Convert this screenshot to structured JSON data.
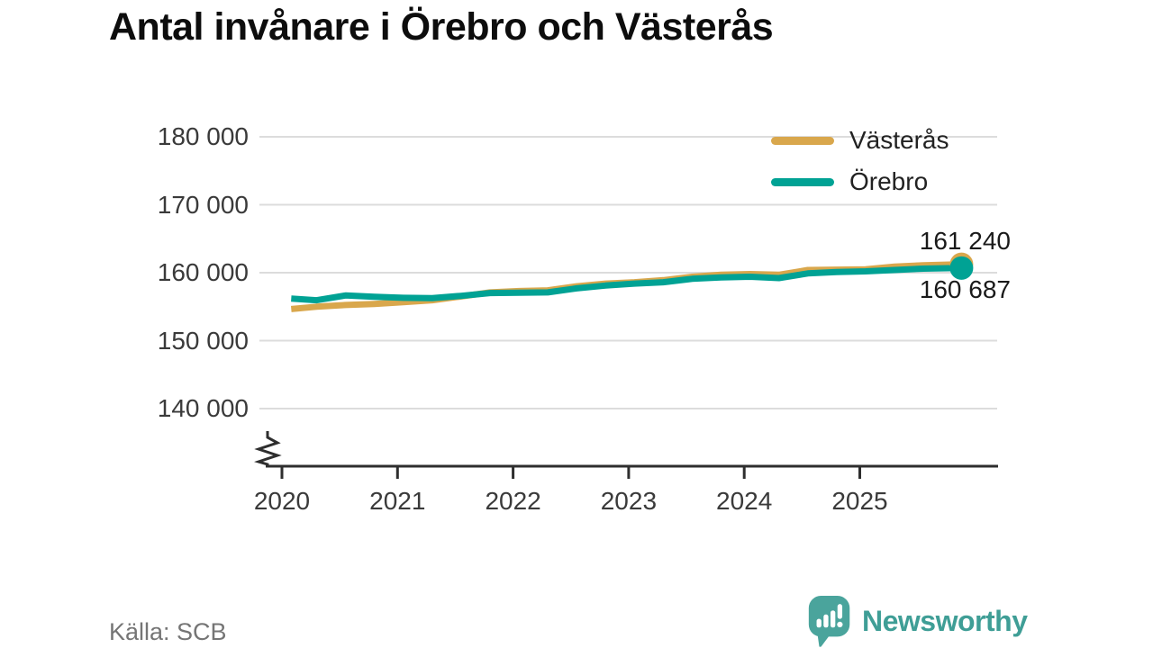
{
  "header": {
    "title": "Antal invånare i Örebro och Västerås"
  },
  "footer": {
    "source": "Källa: SCB",
    "brand": "Newsworthy"
  },
  "colors": {
    "vasteras_gold": "#d9a74c",
    "orebro_teal": "#00a294",
    "grid": "#dcdcdc",
    "axis": "#2e2e2e",
    "tick_text": "#3a3a3a",
    "value_text": "#1a1a1a",
    "source_text": "#757575",
    "brand_teal": "#3f9e96",
    "logo_bubble": "#4aa49c"
  },
  "chart_data": {
    "type": "line",
    "title": "Antal invånare i Örebro och Västerås",
    "xlabel": "",
    "ylabel": "",
    "grid": "horizontal",
    "legend_position": "top-right",
    "axis_break": true,
    "ylim_display": [
      137500,
      182000
    ],
    "x": [
      2020.08,
      2020.3,
      2020.55,
      2020.8,
      2021.05,
      2021.3,
      2021.55,
      2021.8,
      2022.05,
      2022.3,
      2022.55,
      2022.8,
      2023.05,
      2023.3,
      2023.55,
      2023.8,
      2024.05,
      2024.3,
      2024.55,
      2024.8,
      2025.05,
      2025.3,
      2025.55,
      2025.88
    ],
    "series": [
      {
        "name": "Västerås",
        "color": "#d9a74c",
        "end_label": "161 240",
        "end_value": 161240,
        "values": [
          154650,
          155000,
          155250,
          155400,
          155650,
          155950,
          156500,
          157100,
          157300,
          157400,
          158000,
          158400,
          158600,
          158900,
          159400,
          159700,
          159800,
          159700,
          160400,
          160450,
          160500,
          160900,
          161100,
          161240
        ]
      },
      {
        "name": "Örebro",
        "color": "#00a294",
        "end_label": "160 687",
        "end_value": 160687,
        "values": [
          156200,
          155950,
          156650,
          156450,
          156300,
          156250,
          156600,
          157000,
          157050,
          157100,
          157700,
          158100,
          158400,
          158600,
          159100,
          159300,
          159400,
          159200,
          159900,
          160100,
          160200,
          160400,
          160600,
          160687
        ]
      }
    ],
    "xticks": [
      {
        "value": 2020,
        "label": "2020"
      },
      {
        "value": 2021,
        "label": "2021"
      },
      {
        "value": 2022,
        "label": "2022"
      },
      {
        "value": 2023,
        "label": "2023"
      },
      {
        "value": 2024,
        "label": "2024"
      },
      {
        "value": 2025,
        "label": "2025"
      }
    ],
    "yticks": [
      {
        "value": 180000,
        "label": "180 000"
      },
      {
        "value": 170000,
        "label": "170 000"
      },
      {
        "value": 160000,
        "label": "160 000"
      },
      {
        "value": 150000,
        "label": "150 000"
      },
      {
        "value": 140000,
        "label": "140 000"
      }
    ],
    "source": "Källa: SCB"
  }
}
